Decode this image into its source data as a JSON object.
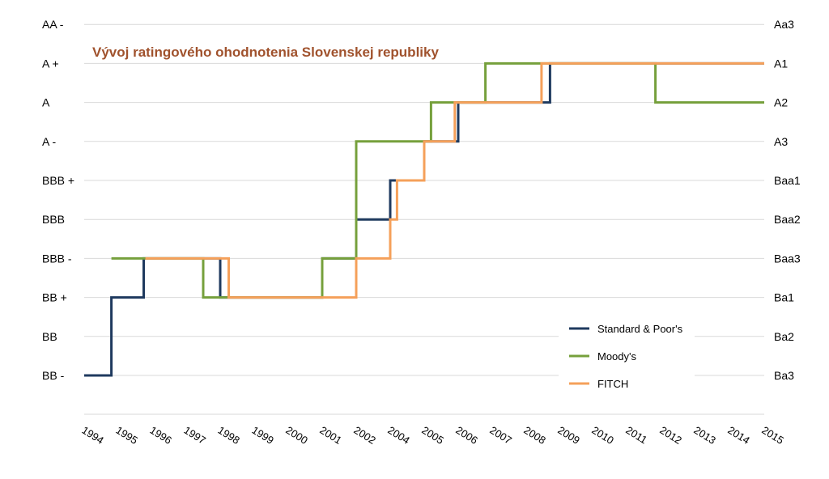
{
  "chart_data": {
    "type": "line",
    "title": "Vývoj ratingového ohodnotenia Slovenskej republiky",
    "left_axis_labels": [
      "BB -",
      "BB",
      "BB +",
      "BBB -",
      "BBB",
      "BBB +",
      "A -",
      "A",
      "A +",
      "AA -"
    ],
    "right_axis_labels": [
      "Ba3",
      "Ba2",
      "Ba1",
      "Baa3",
      "Baa2",
      "Baa1",
      "A3",
      "A2",
      "A1",
      "Aa3"
    ],
    "x_tick_labels": [
      "1994",
      "1995",
      "1996",
      "1997",
      "1998",
      "1999",
      "2000",
      "2001",
      "2002",
      "2004",
      "2005",
      "2006",
      "2007",
      "2008",
      "2009",
      "2010",
      "2011",
      "2012",
      "2013",
      "2014",
      "2015"
    ],
    "ylim": [
      0,
      9
    ],
    "grid": true,
    "legend_position": "bottom-right",
    "series": [
      {
        "name": "Standard & Poor's",
        "color": "#1f3a5f",
        "points": [
          [
            0.0,
            0
          ],
          [
            0.8,
            0
          ],
          [
            0.8,
            2
          ],
          [
            1.75,
            2
          ],
          [
            1.75,
            3
          ],
          [
            4.0,
            3
          ],
          [
            4.0,
            2
          ],
          [
            7.0,
            2
          ],
          [
            7.0,
            3
          ],
          [
            8.0,
            3
          ],
          [
            8.0,
            4
          ],
          [
            9.0,
            4
          ],
          [
            9.0,
            5
          ],
          [
            10.0,
            5
          ],
          [
            10.0,
            6
          ],
          [
            11.0,
            6
          ],
          [
            11.0,
            7
          ],
          [
            13.7,
            7
          ],
          [
            13.7,
            8
          ],
          [
            20.0,
            8
          ]
        ]
      },
      {
        "name": "Moody's",
        "color": "#76a03c",
        "points": [
          [
            0.8,
            3
          ],
          [
            3.5,
            3
          ],
          [
            3.5,
            2
          ],
          [
            7.0,
            2
          ],
          [
            7.0,
            3
          ],
          [
            8.0,
            3
          ],
          [
            8.0,
            6
          ],
          [
            10.2,
            6
          ],
          [
            10.2,
            7
          ],
          [
            11.8,
            7
          ],
          [
            11.8,
            8
          ],
          [
            16.8,
            8
          ],
          [
            16.8,
            7
          ],
          [
            20.0,
            7
          ]
        ]
      },
      {
        "name": "FITCH",
        "color": "#f5a05a",
        "points": [
          [
            1.8,
            3
          ],
          [
            4.25,
            3
          ],
          [
            4.25,
            2
          ],
          [
            8.0,
            2
          ],
          [
            8.0,
            3
          ],
          [
            9.0,
            3
          ],
          [
            9.0,
            4
          ],
          [
            9.2,
            4
          ],
          [
            9.2,
            5
          ],
          [
            10.0,
            5
          ],
          [
            10.0,
            6
          ],
          [
            10.9,
            6
          ],
          [
            10.9,
            7
          ],
          [
            13.45,
            7
          ],
          [
            13.45,
            8
          ],
          [
            20.0,
            8
          ]
        ]
      }
    ]
  }
}
